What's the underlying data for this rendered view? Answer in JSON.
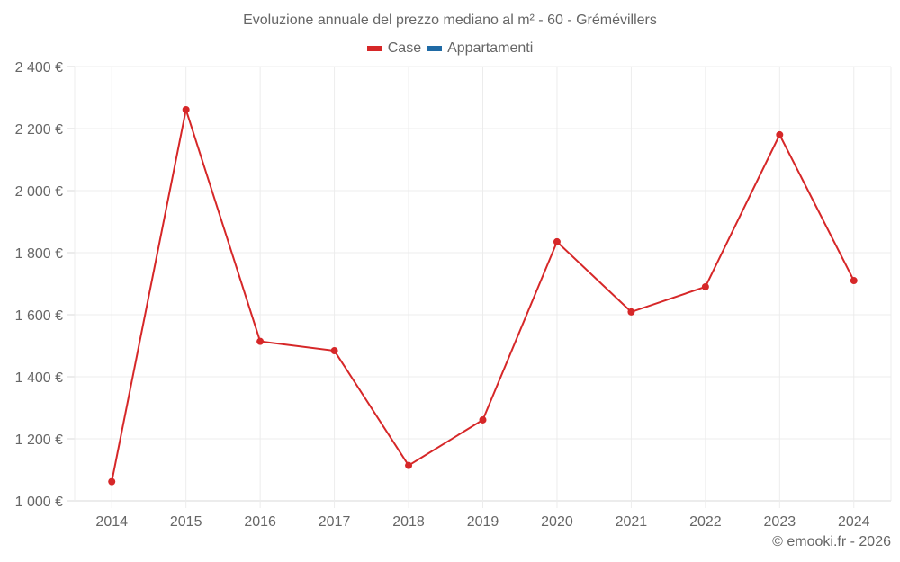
{
  "title": "Evoluzione annuale del prezzo mediano al m² - 60 - Grémévillers",
  "legend": [
    {
      "label": "Case",
      "color": "#d62728"
    },
    {
      "label": "Appartamenti",
      "color": "#1f6aa5"
    }
  ],
  "credit": "© emooki.fr - 2026",
  "y_ticks": [
    "2 400 €",
    "2 200 €",
    "2 000 €",
    "1 800 €",
    "1 600 €",
    "1 400 €",
    "1 200 €",
    "1 000 €"
  ],
  "chart_data": {
    "type": "line",
    "title": "Evoluzione annuale del prezzo mediano al m² - 60 - Grémévillers",
    "xlabel": "",
    "ylabel": "",
    "categories": [
      "2014",
      "2015",
      "2016",
      "2017",
      "2018",
      "2019",
      "2020",
      "2021",
      "2022",
      "2023",
      "2024"
    ],
    "series": [
      {
        "name": "Case",
        "color": "#d62728",
        "values": [
          1062,
          2261,
          1514,
          1484,
          1114,
          1261,
          1835,
          1609,
          1690,
          2180,
          1710
        ]
      },
      {
        "name": "Appartamenti",
        "color": "#1f6aa5",
        "values": []
      }
    ],
    "ylim": [
      1000,
      2400
    ],
    "yticks": [
      1000,
      1200,
      1400,
      1600,
      1800,
      2000,
      2200,
      2400
    ],
    "grid": true,
    "legend_position": "top"
  }
}
